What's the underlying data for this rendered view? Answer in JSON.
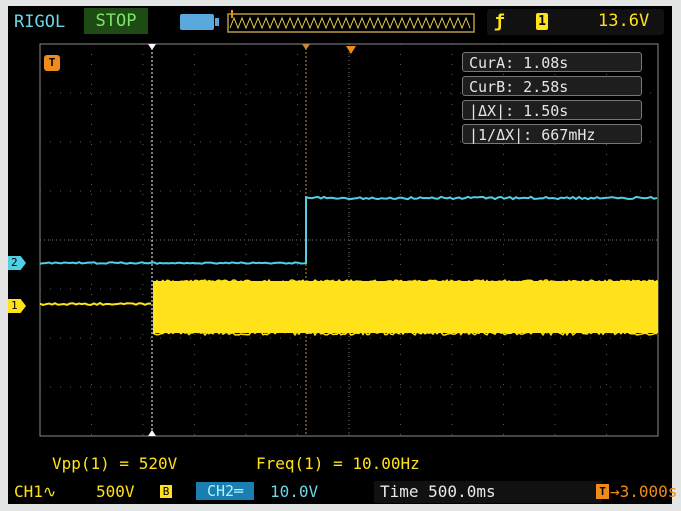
{
  "header": {
    "brand": "RIGOL",
    "run_state": "STOP",
    "trigger_slope_symbol": "ƒ",
    "trigger_source": "1",
    "trigger_level": "13.6V"
  },
  "measurements": {
    "cursor_a": "CurA: 1.08s",
    "cursor_b": "CurB: 2.58s",
    "delta_x": "|ΔX|: 1.50s",
    "inv_delta_x": "|1/ΔX|: 667mHz"
  },
  "readouts": {
    "vpp": "Vpp(1) = 520V",
    "freq": "Freq(1) = 10.00Hz"
  },
  "markers": {
    "ch1": "1",
    "ch2": "2",
    "trigger": "T"
  },
  "footer": {
    "ch1_label": "CH1∿",
    "ch1_scale": "500V",
    "bw_limit": "B",
    "ch2_label": "CH2═",
    "ch2_scale": "10.0V",
    "time_base": "Time 500.0ms",
    "trigger_mark": "T",
    "trigger_offset": "→3.000s"
  },
  "colors": {
    "ch1": "#ffe21a",
    "ch2": "#4fd0e6",
    "trigger": "#f08a1a",
    "cursor": "#ffffff"
  }
}
